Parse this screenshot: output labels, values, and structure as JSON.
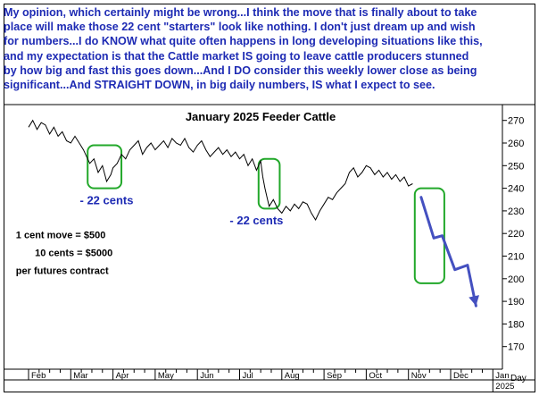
{
  "commentary": {
    "lines": [
      "My opinion, which certainly might be wrong...I think the move that is finally about to take",
      "place will make those 22 cent \"starters\" look like nothing. I don't just dream up and wish",
      "for numbers...I do KNOW what quite often happens in long developing situations like this,",
      "and my expectation is that the Cattle market IS going to leave cattle producers stunned",
      "by how big and fast this goes down...And I DO consider this weekly lower close as being",
      "significant...And STRAIGHT DOWN, in big daily numbers, IS what I expect to see."
    ]
  },
  "colors": {
    "commentary_text": "#1e2bb4",
    "annotation_text": "#1e2bb4",
    "highlight_box": "#22a82a",
    "forecast_arrow": "#4450c0",
    "price_line": "#000000"
  },
  "chart_data": {
    "type": "line",
    "title": "January 2025 Feeder Cattle",
    "xlabel": "",
    "ylabel": "",
    "ylim": [
      160,
      277
    ],
    "yticks": [
      170,
      180,
      190,
      200,
      210,
      220,
      230,
      240,
      250,
      260,
      270
    ],
    "x_axis_months": [
      "Feb",
      "Mar",
      "Apr",
      "May",
      "Jun",
      "Jul",
      "Aug",
      "Sep",
      "Oct",
      "Nov",
      "Dec",
      "Jan"
    ],
    "x_axis_year_label": "2025",
    "x_axis_unit_label": "Day",
    "x_unit": "months since Feb 1 2024",
    "grid": false,
    "series": [
      {
        "name": "",
        "x": [
          0.0,
          0.1,
          0.2,
          0.3,
          0.4,
          0.5,
          0.6,
          0.7,
          0.8,
          0.9,
          1.0,
          1.1,
          1.2,
          1.3,
          1.45,
          1.55,
          1.65,
          1.75,
          1.85,
          1.95,
          2.0,
          2.1,
          2.2,
          2.3,
          2.4,
          2.5,
          2.6,
          2.7,
          2.8,
          2.9,
          3.0,
          3.1,
          3.2,
          3.3,
          3.4,
          3.5,
          3.6,
          3.7,
          3.8,
          3.9,
          4.0,
          4.1,
          4.2,
          4.3,
          4.4,
          4.5,
          4.6,
          4.7,
          4.8,
          4.9,
          5.0,
          5.1,
          5.2,
          5.3,
          5.4,
          5.5,
          5.55,
          5.6,
          5.65,
          5.7,
          5.8,
          5.9,
          6.0,
          6.1,
          6.2,
          6.3,
          6.4,
          6.5,
          6.6,
          6.7,
          6.8,
          6.9,
          7.0,
          7.1,
          7.2,
          7.3,
          7.4,
          7.5,
          7.6,
          7.7,
          7.8,
          7.9,
          8.0,
          8.1,
          8.2,
          8.3,
          8.4,
          8.5,
          8.6,
          8.7,
          8.8,
          8.9,
          9.0,
          9.1
        ],
        "values": [
          267,
          270,
          266,
          269,
          268,
          264,
          267,
          263,
          265,
          261,
          260,
          263,
          260,
          257,
          251,
          253,
          247,
          250,
          243,
          246,
          249,
          251,
          255,
          253,
          257,
          259,
          261,
          255,
          258,
          260,
          257,
          259,
          261,
          258,
          262,
          260,
          259,
          262,
          258,
          256,
          259,
          261,
          257,
          254,
          256,
          258,
          255,
          257,
          254,
          256,
          253,
          255,
          250,
          253,
          248,
          252,
          245,
          240,
          236,
          232,
          235,
          231,
          229,
          232,
          230,
          233,
          231,
          234,
          233,
          229,
          226,
          230,
          233,
          236,
          235,
          238,
          240,
          242,
          247,
          249,
          245,
          247,
          250,
          249,
          246,
          248,
          245,
          247,
          244,
          246,
          243,
          245,
          241,
          242
        ]
      },
      {
        "name": "",
        "style": "forecast",
        "x": [
          9.3,
          9.6,
          9.8,
          10.1,
          10.4,
          10.6
        ],
        "values": [
          236,
          218,
          219,
          204,
          206,
          188
        ]
      }
    ],
    "annotations": [
      {
        "text": "- 22 cents",
        "x": 1.85,
        "y": 233
      },
      {
        "text": "- 22 cents",
        "x": 5.4,
        "y": 224
      },
      {
        "text": "1 cent move = $500",
        "x": -0.3,
        "y": 218
      },
      {
        "text": "10 cents = $5000",
        "x": 0.15,
        "y": 210
      },
      {
        "text": "per futures contract",
        "x": -0.3,
        "y": 202
      }
    ],
    "highlight_boxes": [
      {
        "x": [
          1.4,
          2.2
        ],
        "y": [
          240,
          259
        ]
      },
      {
        "x": [
          5.45,
          5.95
        ],
        "y": [
          231,
          253
        ]
      },
      {
        "x": [
          9.15,
          9.85
        ],
        "y": [
          198,
          240
        ]
      }
    ]
  }
}
